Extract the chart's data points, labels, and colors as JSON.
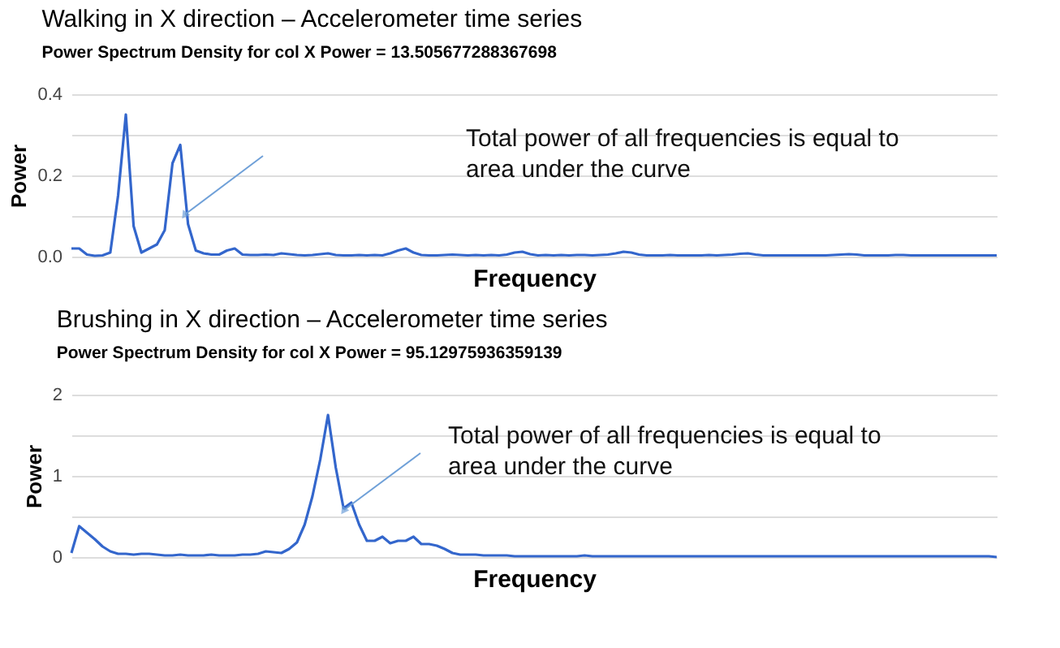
{
  "chart_data": [
    {
      "type": "line",
      "title": "Walking in X direction – Accelerometer time series",
      "subtitle": "Power Spectrum Density for col X Power = 13.505677288367698",
      "xlabel": "Frequency",
      "ylabel": "Power",
      "categories": [
        null,
        null,
        null,
        null,
        null,
        null,
        null,
        null,
        null,
        null,
        null,
        null,
        null,
        null,
        null,
        null,
        null,
        null,
        null,
        null,
        null,
        null,
        null,
        null,
        null,
        null,
        null,
        null,
        null,
        null,
        null,
        null,
        null,
        null,
        null,
        null,
        null,
        null,
        null,
        null,
        null,
        null,
        null,
        null,
        null,
        null,
        null,
        null,
        null,
        null,
        null,
        null,
        null,
        null,
        null,
        null,
        null,
        null,
        null,
        null,
        null,
        null,
        null,
        null,
        null,
        null,
        null,
        null,
        null,
        null,
        null,
        null,
        null,
        null,
        null,
        null,
        null,
        null,
        null,
        null,
        null,
        null,
        null,
        null,
        null,
        null,
        null,
        null,
        null,
        null,
        null,
        null,
        null,
        null,
        null,
        null,
        null,
        null,
        null,
        null,
        null,
        null,
        null,
        null,
        null,
        null,
        null,
        null,
        null,
        null,
        null,
        null,
        null,
        null,
        null,
        null,
        null,
        null,
        null,
        null
      ],
      "series": [
        {
          "color": "#3366cc",
          "values": [
            0.02,
            0.02,
            0.005,
            0.002,
            0.003,
            0.01,
            0.15,
            0.35,
            0.075,
            0.01,
            0.02,
            0.03,
            0.065,
            0.23,
            0.275,
            0.08,
            0.015,
            0.008,
            0.005,
            0.005,
            0.015,
            0.02,
            0.005,
            0.004,
            0.004,
            0.005,
            0.004,
            0.008,
            0.006,
            0.004,
            0.003,
            0.004,
            0.006,
            0.008,
            0.004,
            0.003,
            0.003,
            0.004,
            0.003,
            0.004,
            0.003,
            0.008,
            0.015,
            0.02,
            0.01,
            0.004,
            0.003,
            0.003,
            0.004,
            0.005,
            0.004,
            0.003,
            0.004,
            0.003,
            0.004,
            0.003,
            0.005,
            0.01,
            0.012,
            0.006,
            0.003,
            0.004,
            0.003,
            0.004,
            0.003,
            0.004,
            0.004,
            0.003,
            0.004,
            0.005,
            0.008,
            0.012,
            0.01,
            0.005,
            0.003,
            0.003,
            0.003,
            0.004,
            0.003,
            0.003,
            0.003,
            0.003,
            0.004,
            0.003,
            0.004,
            0.005,
            0.007,
            0.008,
            0.005,
            0.003,
            0.003,
            0.003,
            0.003,
            0.003,
            0.003,
            0.003,
            0.003,
            0.003,
            0.004,
            0.005,
            0.006,
            0.005,
            0.003,
            0.003,
            0.003,
            0.003,
            0.004,
            0.004,
            0.003,
            0.003,
            0.003,
            0.003,
            0.003,
            0.003,
            0.003,
            0.003,
            0.003,
            0.003,
            0.003,
            0.003
          ]
        }
      ],
      "ylim": [
        0,
        0.4
      ],
      "yticks": [
        {
          "value": 0,
          "label": "0.0"
        },
        {
          "value": 0.1,
          "label": null
        },
        {
          "value": 0.2,
          "label": "0.2"
        },
        {
          "value": 0.3,
          "label": null
        },
        {
          "value": 0.4,
          "label": "0.4"
        }
      ],
      "grid": "y",
      "tick_labels": "y",
      "annotations": [
        "Total power of all frequencies is equal to\narea under the curve"
      ]
    },
    {
      "type": "line",
      "title": "Brushing in X direction – Accelerometer time series",
      "subtitle": "Power Spectrum Density for col X Power = 95.12975936359139",
      "xlabel": "Frequency",
      "ylabel": "Power",
      "categories": [
        null,
        null,
        null,
        null,
        null,
        null,
        null,
        null,
        null,
        null,
        null,
        null,
        null,
        null,
        null,
        null,
        null,
        null,
        null,
        null,
        null,
        null,
        null,
        null,
        null,
        null,
        null,
        null,
        null,
        null,
        null,
        null,
        null,
        null,
        null,
        null,
        null,
        null,
        null,
        null,
        null,
        null,
        null,
        null,
        null,
        null,
        null,
        null,
        null,
        null,
        null,
        null,
        null,
        null,
        null,
        null,
        null,
        null,
        null,
        null,
        null,
        null,
        null,
        null,
        null,
        null,
        null,
        null,
        null,
        null,
        null,
        null,
        null,
        null,
        null,
        null,
        null,
        null,
        null,
        null,
        null,
        null,
        null,
        null,
        null,
        null,
        null,
        null,
        null,
        null,
        null,
        null,
        null,
        null,
        null,
        null,
        null,
        null,
        null,
        null,
        null,
        null,
        null,
        null,
        null,
        null,
        null,
        null,
        null,
        null,
        null,
        null,
        null,
        null,
        null,
        null,
        null,
        null,
        null,
        null
      ],
      "series": [
        {
          "color": "#3366cc",
          "values": [
            0.05,
            0.38,
            0.3,
            0.22,
            0.13,
            0.07,
            0.04,
            0.04,
            0.03,
            0.04,
            0.04,
            0.03,
            0.02,
            0.02,
            0.03,
            0.02,
            0.02,
            0.02,
            0.03,
            0.02,
            0.02,
            0.02,
            0.03,
            0.03,
            0.04,
            0.07,
            0.06,
            0.05,
            0.1,
            0.18,
            0.4,
            0.75,
            1.2,
            1.75,
            1.1,
            0.6,
            0.67,
            0.4,
            0.2,
            0.2,
            0.25,
            0.17,
            0.2,
            0.2,
            0.25,
            0.16,
            0.16,
            0.14,
            0.1,
            0.05,
            0.03,
            0.03,
            0.03,
            0.02,
            0.02,
            0.02,
            0.02,
            0.01,
            0.01,
            0.01,
            0.01,
            0.01,
            0.01,
            0.01,
            0.01,
            0.01,
            0.02,
            0.01,
            0.01,
            0.01,
            0.01,
            0.01,
            0.01,
            0.01,
            0.01,
            0.01,
            0.01,
            0.01,
            0.01,
            0.01,
            0.01,
            0.01,
            0.01,
            0.01,
            0.01,
            0.01,
            0.01,
            0.01,
            0.01,
            0.01,
            0.01,
            0.01,
            0.01,
            0.01,
            0.01,
            0.01,
            0.01,
            0.01,
            0.01,
            0.01,
            0.01,
            0.01,
            0.01,
            0.01,
            0.01,
            0.01,
            0.01,
            0.01,
            0.01,
            0.01,
            0.01,
            0.01,
            0.01,
            0.01,
            0.01,
            0.01,
            0.01,
            0.01,
            0.01,
            0
          ]
        }
      ],
      "ylim": [
        0,
        2
      ],
      "yticks": [
        {
          "value": 0,
          "label": "0"
        },
        {
          "value": 0.5,
          "label": null
        },
        {
          "value": 1,
          "label": "1"
        },
        {
          "value": 1.5,
          "label": null
        },
        {
          "value": 2,
          "label": "2"
        }
      ],
      "grid": "y",
      "tick_labels": "y",
      "annotations": [
        "Total power of all frequencies is equal to\narea under the curve"
      ]
    }
  ]
}
